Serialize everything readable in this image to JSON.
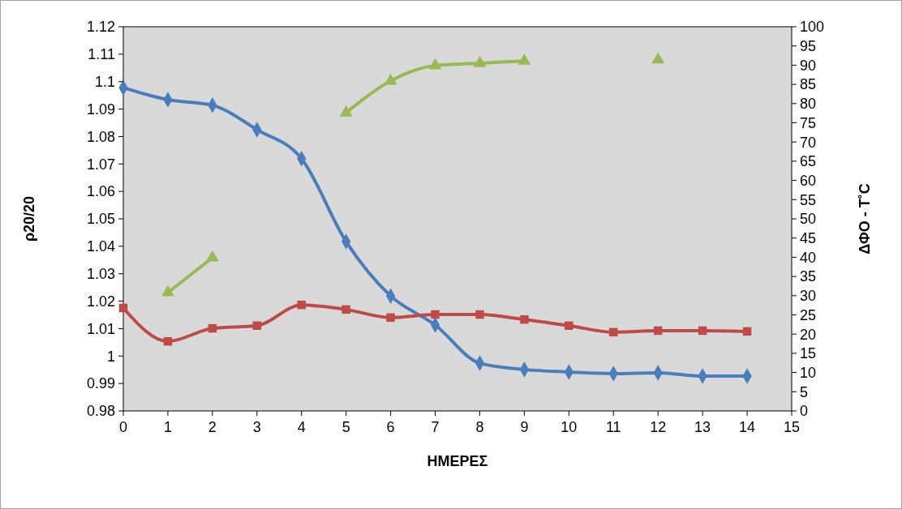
{
  "chart_data": {
    "type": "line",
    "xlabel": "ΗΜΕΡΕΣ",
    "ylabel": "ρ20/20",
    "y2label": "ΔΦΟ - Τ˚C",
    "x": [
      0,
      1,
      2,
      3,
      4,
      5,
      6,
      7,
      8,
      9,
      10,
      11,
      12,
      13,
      14
    ],
    "xlim": [
      0,
      15
    ],
    "xticks": [
      0,
      1,
      2,
      3,
      4,
      5,
      6,
      7,
      8,
      9,
      10,
      11,
      12,
      13,
      14,
      15
    ],
    "ylim": [
      0.98,
      1.12
    ],
    "yticks": [
      0.98,
      0.99,
      1,
      1.01,
      1.02,
      1.03,
      1.04,
      1.05,
      1.06,
      1.07,
      1.08,
      1.09,
      1.1,
      1.11,
      1.12
    ],
    "y2lim": [
      0,
      100
    ],
    "y2ticks": [
      0,
      5,
      10,
      15,
      20,
      25,
      30,
      35,
      40,
      45,
      50,
      55,
      60,
      65,
      70,
      75,
      80,
      85,
      90,
      95,
      100
    ],
    "grid": false,
    "series": [
      {
        "color": "#4a7ebb",
        "marker": "diamond",
        "values": [
          1.0978,
          1.0934,
          1.0914,
          1.0825,
          1.0719,
          1.0417,
          1.0219,
          1.0113,
          0.9974,
          0.9951,
          0.9942,
          0.9936,
          0.9939,
          0.9927,
          0.9927
        ]
      },
      {
        "color": "#be4b48",
        "marker": "square",
        "axis": "y2",
        "values": [
          26.8,
          18.1,
          21.5,
          22.2,
          27.6,
          26.4,
          24.3,
          25.1,
          25.1,
          23.8,
          22.2,
          20.5,
          20.9,
          20.9,
          20.7
        ]
      },
      {
        "color": "#98b954",
        "marker": "triangle",
        "axis": "y2",
        "values": [
          null,
          30.8,
          39.9,
          null,
          null,
          77.6,
          85.9,
          89.9,
          90.5,
          91.1,
          null,
          null,
          91.4,
          null,
          null
        ]
      }
    ]
  }
}
